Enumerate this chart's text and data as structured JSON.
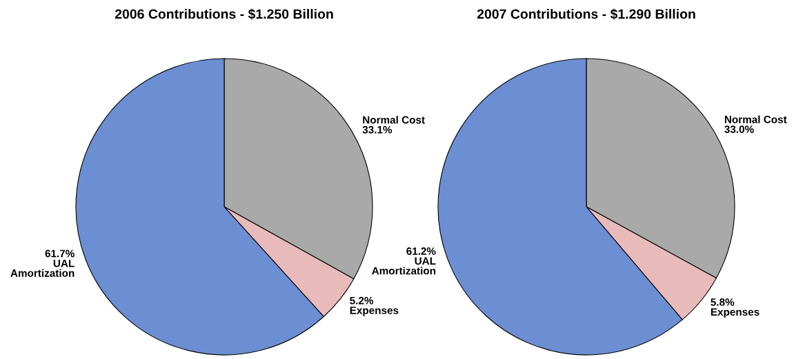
{
  "chart_data": [
    {
      "type": "pie",
      "title": "2006 Contributions - $1.250 Billion",
      "categories": [
        "Normal Cost",
        "Expenses",
        "UAL\nAmortization"
      ],
      "values": [
        33.1,
        5.2,
        61.7
      ],
      "value_labels": [
        "33.1%",
        "5.2%",
        "61.7%"
      ],
      "colors": [
        "#a9a9a9",
        "#e9baba",
        "#6b8fd2"
      ]
    },
    {
      "type": "pie",
      "title": "2007 Contributions - $1.290 Billion",
      "categories": [
        "Normal Cost",
        "Expenses",
        "UAL\nAmortization"
      ],
      "values": [
        33.0,
        5.8,
        61.2
      ],
      "value_labels": [
        "33.0%",
        "5.8%",
        "61.2%"
      ],
      "colors": [
        "#a9a9a9",
        "#e9baba",
        "#6b8fd2"
      ]
    }
  ]
}
